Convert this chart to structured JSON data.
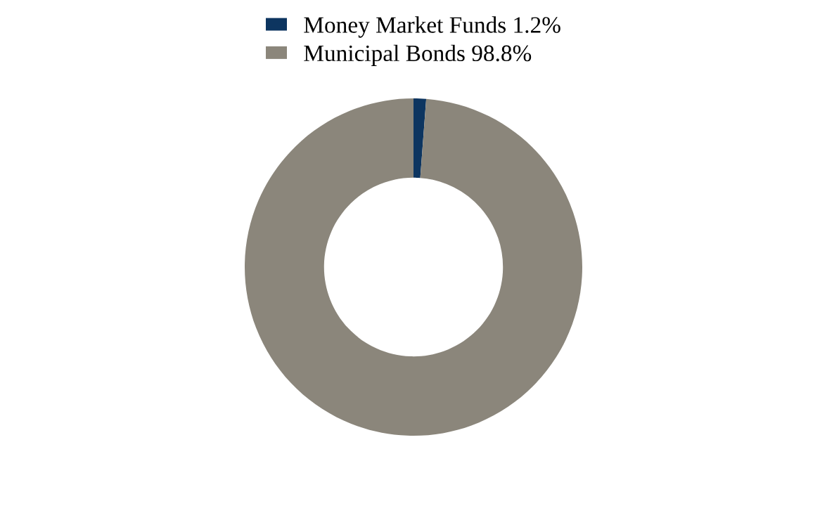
{
  "chart_data": {
    "type": "donut",
    "categories": [
      "Money Market Funds",
      "Municipal Bonds"
    ],
    "values": [
      1.2,
      98.8
    ],
    "value_labels": [
      "1.2%",
      "98.8%"
    ],
    "colors": [
      "#0d3560",
      "#8b867b"
    ],
    "legend": "top"
  }
}
